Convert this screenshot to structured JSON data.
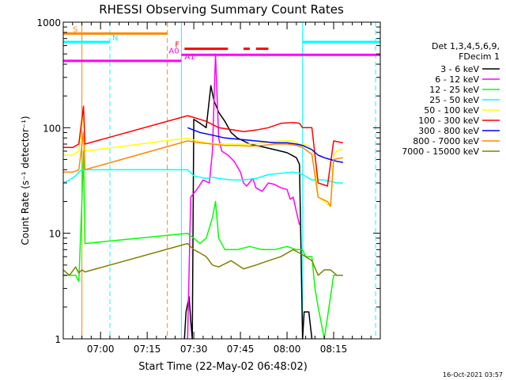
{
  "chart_data": {
    "type": "line",
    "title": "RHESSI Observing Summary Count Rates",
    "xlabel": "Start Time (22-May-02 06:48:02)",
    "ylabel": "Count Rate (s⁻¹ detector⁻¹)",
    "ylog": true,
    "ylim": [
      1,
      1000
    ],
    "xlim_min": [
      0,
      102
    ],
    "x_ticks": [
      {
        "label": "07:00",
        "min": 12
      },
      {
        "label": "07:15",
        "min": 27
      },
      {
        "label": "07:30",
        "min": 42
      },
      {
        "label": "07:45",
        "min": 57
      },
      {
        "label": "08:00",
        "min": 72
      },
      {
        "label": "08:15",
        "min": 87
      }
    ],
    "y_ticks": [
      {
        "label": "1000",
        "v": 1000
      },
      {
        "label": "100",
        "v": 100
      },
      {
        "label": "10",
        "v": 10
      },
      {
        "label": "1",
        "v": 1
      }
    ],
    "legend_header": [
      "Det 1,3,4,5,6,9,",
      "FDecim 1"
    ],
    "series": [
      {
        "name": "3 - 6 keV",
        "color": "#000000",
        "points": [
          [
            39,
            1
          ],
          [
            39.5,
            1.8
          ],
          [
            40.5,
            2.5
          ],
          [
            41,
            1.5
          ],
          [
            41.5,
            1
          ],
          [
            42,
            120
          ],
          [
            44,
            110
          ],
          [
            46,
            100
          ],
          [
            47.5,
            250
          ],
          [
            48.5,
            180
          ],
          [
            50,
            140
          ],
          [
            52,
            115
          ],
          [
            54,
            90
          ],
          [
            56,
            80
          ],
          [
            58,
            75
          ],
          [
            60,
            70
          ],
          [
            64,
            66
          ],
          [
            68,
            62
          ],
          [
            72,
            58
          ],
          [
            75,
            52
          ],
          [
            76,
            45
          ],
          [
            77,
            1
          ],
          [
            77.5,
            1.8
          ],
          [
            79,
            1.8
          ],
          [
            80,
            1
          ]
        ]
      },
      {
        "name": "6 - 12 keV",
        "color": "#ff00ff",
        "points": [
          [
            40,
            1
          ],
          [
            41,
            22
          ],
          [
            43,
            26
          ],
          [
            45,
            32
          ],
          [
            47,
            30
          ],
          [
            48,
            60
          ],
          [
            49,
            500
          ],
          [
            50,
            80
          ],
          [
            51,
            60
          ],
          [
            53,
            55
          ],
          [
            55,
            48
          ],
          [
            57,
            38
          ],
          [
            58,
            30
          ],
          [
            59,
            28
          ],
          [
            61,
            33
          ],
          [
            62,
            27
          ],
          [
            64,
            25
          ],
          [
            66,
            30
          ],
          [
            68,
            29
          ],
          [
            70,
            27
          ],
          [
            72,
            26
          ],
          [
            73,
            21
          ],
          [
            74,
            22
          ],
          [
            75,
            16
          ],
          [
            76,
            12
          ]
        ]
      },
      {
        "name": "12 - 25 keV",
        "color": "#00ff00",
        "points": [
          [
            0,
            4
          ],
          [
            4,
            4
          ],
          [
            5,
            3.5
          ],
          [
            6,
            20
          ],
          [
            6.5,
            60
          ],
          [
            7,
            8
          ],
          [
            40,
            10
          ],
          [
            42,
            9
          ],
          [
            44,
            8
          ],
          [
            46,
            9
          ],
          [
            48,
            14
          ],
          [
            49,
            20
          ],
          [
            50,
            9
          ],
          [
            52,
            7
          ],
          [
            56,
            7
          ],
          [
            60,
            7.5
          ],
          [
            64,
            7
          ],
          [
            68,
            7
          ],
          [
            72,
            7.5
          ],
          [
            75,
            7
          ],
          [
            77,
            7
          ],
          [
            78,
            6
          ],
          [
            80,
            6
          ],
          [
            81,
            3
          ],
          [
            82,
            2
          ],
          [
            84,
            1
          ],
          [
            87,
            4
          ],
          [
            90,
            4
          ]
        ]
      },
      {
        "name": "25 - 50 keV",
        "color": "#00ffff",
        "points": [
          [
            0,
            30
          ],
          [
            2,
            32
          ],
          [
            4,
            35
          ],
          [
            5,
            38
          ],
          [
            6,
            40
          ],
          [
            7,
            40
          ],
          [
            40,
            40
          ],
          [
            42,
            35
          ],
          [
            44,
            34
          ],
          [
            46,
            33
          ],
          [
            48,
            34
          ],
          [
            50,
            33
          ],
          [
            54,
            32
          ],
          [
            58,
            32
          ],
          [
            62,
            33
          ],
          [
            66,
            36
          ],
          [
            70,
            37
          ],
          [
            74,
            38
          ],
          [
            76,
            37
          ],
          [
            77,
            36
          ],
          [
            80,
            32
          ],
          [
            84,
            32
          ],
          [
            86,
            31
          ],
          [
            88,
            30
          ],
          [
            90,
            30
          ]
        ]
      },
      {
        "name": "50 - 100 keV",
        "color": "#ffff00",
        "points": [
          [
            0,
            55
          ],
          [
            3,
            55
          ],
          [
            5,
            60
          ],
          [
            6.5,
            140
          ],
          [
            7,
            60
          ],
          [
            40,
            80
          ],
          [
            43,
            75
          ],
          [
            46,
            72
          ],
          [
            50,
            70
          ],
          [
            55,
            70
          ],
          [
            60,
            70
          ],
          [
            65,
            72
          ],
          [
            70,
            75
          ],
          [
            74,
            75
          ],
          [
            76,
            70
          ],
          [
            79,
            68
          ],
          [
            81,
            55
          ],
          [
            82,
            22
          ],
          [
            84,
            20
          ],
          [
            86,
            18
          ],
          [
            87,
            55
          ],
          [
            88,
            60
          ],
          [
            89,
            62
          ],
          [
            90,
            62
          ]
        ]
      },
      {
        "name": "100 - 300 keV",
        "color": "#ff0000",
        "points": [
          [
            0,
            65
          ],
          [
            3,
            65
          ],
          [
            5,
            70
          ],
          [
            6.5,
            160
          ],
          [
            7,
            70
          ],
          [
            40,
            130
          ],
          [
            42,
            125
          ],
          [
            44,
            120
          ],
          [
            46,
            115
          ],
          [
            50,
            100
          ],
          [
            55,
            95
          ],
          [
            58,
            92
          ],
          [
            62,
            95
          ],
          [
            66,
            100
          ],
          [
            70,
            110
          ],
          [
            74,
            112
          ],
          [
            76,
            110
          ],
          [
            77,
            100
          ],
          [
            80,
            100
          ],
          [
            82,
            30
          ],
          [
            85,
            28
          ],
          [
            87,
            75
          ],
          [
            90,
            72
          ]
        ]
      },
      {
        "name": "300 - 800 keV",
        "color": "#0000ff",
        "points": [
          [
            40,
            100
          ],
          [
            44,
            90
          ],
          [
            48,
            85
          ],
          [
            52,
            80
          ],
          [
            56,
            78
          ],
          [
            60,
            76
          ],
          [
            64,
            74
          ],
          [
            68,
            72
          ],
          [
            72,
            72
          ],
          [
            75,
            70
          ],
          [
            77,
            68
          ],
          [
            80,
            62
          ],
          [
            82,
            55
          ],
          [
            84,
            52
          ],
          [
            86,
            50
          ],
          [
            88,
            48
          ],
          [
            90,
            47
          ]
        ]
      },
      {
        "name": "800 - 7000 keV",
        "color": "#ff8800",
        "points": [
          [
            0,
            38
          ],
          [
            3,
            38
          ],
          [
            5,
            40
          ],
          [
            6.5,
            90
          ],
          [
            7,
            40
          ],
          [
            40,
            75
          ],
          [
            44,
            72
          ],
          [
            48,
            70
          ],
          [
            52,
            68
          ],
          [
            56,
            68
          ],
          [
            60,
            67
          ],
          [
            64,
            68
          ],
          [
            68,
            70
          ],
          [
            72,
            70
          ],
          [
            75,
            68
          ],
          [
            77,
            65
          ],
          [
            80,
            56
          ],
          [
            82,
            22
          ],
          [
            85,
            20
          ],
          [
            86,
            18
          ],
          [
            87,
            50
          ],
          [
            90,
            52
          ]
        ]
      },
      {
        "name": "7000 - 15000 keV",
        "color": "#808000",
        "points": [
          [
            0,
            4.5
          ],
          [
            2,
            4
          ],
          [
            4,
            4.8
          ],
          [
            5,
            4.2
          ],
          [
            6,
            4.5
          ],
          [
            7,
            4.3
          ],
          [
            40,
            8
          ],
          [
            42,
            7
          ],
          [
            44,
            6.5
          ],
          [
            46,
            6
          ],
          [
            48,
            5
          ],
          [
            50,
            4.8
          ],
          [
            54,
            5.5
          ],
          [
            58,
            4.6
          ],
          [
            62,
            5
          ],
          [
            66,
            5.5
          ],
          [
            70,
            6
          ],
          [
            74,
            7
          ],
          [
            76,
            6.5
          ],
          [
            78,
            6
          ],
          [
            80,
            5.5
          ],
          [
            82,
            4
          ],
          [
            84,
            4.5
          ],
          [
            86,
            4.5
          ],
          [
            88,
            4
          ],
          [
            90,
            4
          ]
        ]
      }
    ],
    "flags": [
      {
        "label": "S",
        "color": "#ff8800",
        "y_val": 780,
        "x0": 0,
        "x1": 33.5
      },
      {
        "label": "N",
        "color": "#00ffff",
        "y_val": 650,
        "x0": 0,
        "x1": 15
      },
      {
        "label": "F",
        "color": "#ff0000",
        "y_val": 560,
        "segments": [
          [
            39,
            53
          ],
          [
            58,
            60
          ],
          [
            62,
            66
          ]
        ]
      },
      {
        "label": "A0",
        "color": "#ff00ff",
        "y_val": 490,
        "x0": 38,
        "x1": 102
      },
      {
        "label": "A1",
        "color": "#ff00ff",
        "y_val": 430,
        "x0": 0,
        "x1": 38
      },
      {
        "label": "",
        "color": "#00ffff",
        "y_val": 650,
        "x0": 77,
        "x1": 102
      }
    ],
    "vlines": [
      {
        "min": 6,
        "color": "#ff8800",
        "dash": false
      },
      {
        "min": 15,
        "color": "#00ffff",
        "dash": true
      },
      {
        "min": 33.5,
        "color": "#ff8800",
        "dash": true
      },
      {
        "min": 38,
        "color": "#00ffff",
        "dash": false
      },
      {
        "min": 77,
        "color": "#00ffff",
        "dash": false
      },
      {
        "min": 100.5,
        "color": "#00ffff",
        "dash": true
      }
    ],
    "footer": "16-Oct-2021 03:57"
  }
}
